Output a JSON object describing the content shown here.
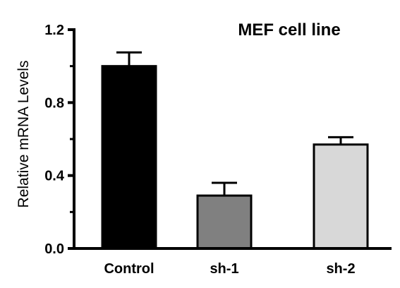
{
  "chart_data": {
    "type": "bar",
    "title": "MEF cell line",
    "xlabel": "",
    "ylabel": "Relative mRNA Levels",
    "categories": [
      "Control",
      "sh-1",
      "sh-2"
    ],
    "values": [
      1.0,
      0.29,
      0.57
    ],
    "errors": [
      0.075,
      0.07,
      0.04
    ],
    "bar_colors": [
      "#000000",
      "#808080",
      "#d8d8d8"
    ],
    "ylim": [
      0,
      1.2
    ],
    "yticks": [
      0.0,
      0.4,
      0.8,
      1.2
    ],
    "ytick_labels": [
      "0.0",
      "0.4",
      "0.8",
      "1.2"
    ],
    "grid": false,
    "legend": "none"
  }
}
